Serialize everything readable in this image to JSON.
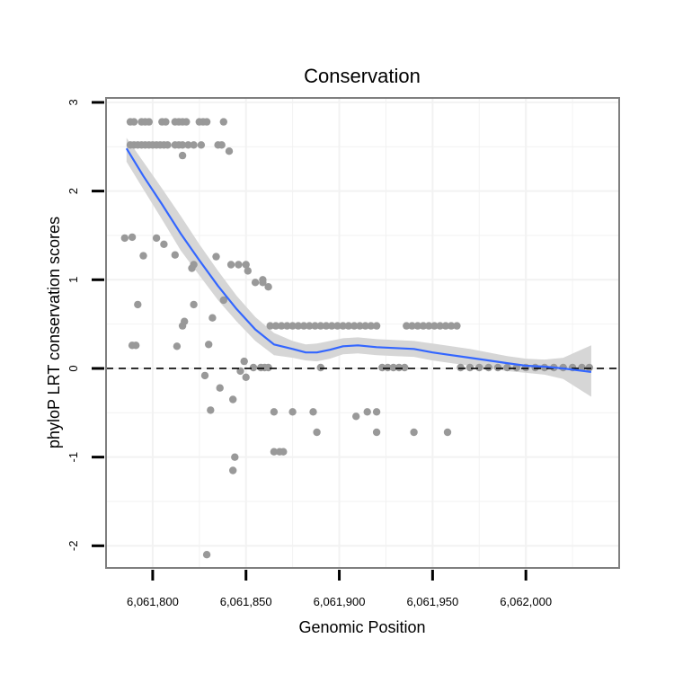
{
  "chart_data": {
    "type": "scatter",
    "title": "Conservation",
    "xlabel": "Genomic Position",
    "ylabel": "phyloP LRT conservation scores",
    "xlim": [
      6061775,
      6062050
    ],
    "ylim": [
      -2.25,
      3.05
    ],
    "x_ticks": [
      {
        "value": 6061800,
        "label": "6,061,800"
      },
      {
        "value": 6061850,
        "label": "6,061,850"
      },
      {
        "value": 6061900,
        "label": "6,061,900"
      },
      {
        "value": 6061950,
        "label": "6,061,950"
      },
      {
        "value": 6062000,
        "label": "6,062,000"
      }
    ],
    "y_ticks": [
      {
        "value": -2,
        "label": "-2"
      },
      {
        "value": -1,
        "label": "-1"
      },
      {
        "value": 0,
        "label": "0"
      },
      {
        "value": 1,
        "label": "1"
      },
      {
        "value": 2,
        "label": "2"
      },
      {
        "value": 3,
        "label": "3"
      }
    ],
    "x_minor": [
      6061825,
      6061875,
      6061925,
      6061975,
      6062025
    ],
    "y_minor": [
      -1.5,
      -0.5,
      0.5,
      1.5,
      2.5
    ],
    "reference_line": {
      "y": 0,
      "style": "dashed"
    },
    "points_color": "#999999",
    "smooth_color": "#3366FF",
    "band_color": "#D6D6D6",
    "panel_border_color": "#7F7F7F",
    "grid_color": "#F2F2F2",
    "points": [
      [
        6061788,
        2.78
      ],
      [
        6061790,
        2.78
      ],
      [
        6061794,
        2.78
      ],
      [
        6061796,
        2.78
      ],
      [
        6061798,
        2.78
      ],
      [
        6061805,
        2.78
      ],
      [
        6061807,
        2.78
      ],
      [
        6061812,
        2.78
      ],
      [
        6061814,
        2.78
      ],
      [
        6061816,
        2.78
      ],
      [
        6061818,
        2.78
      ],
      [
        6061825,
        2.78
      ],
      [
        6061827,
        2.78
      ],
      [
        6061829,
        2.78
      ],
      [
        6061838,
        2.78
      ],
      [
        6061788,
        2.52
      ],
      [
        6061790,
        2.52
      ],
      [
        6061792,
        2.52
      ],
      [
        6061794,
        2.52
      ],
      [
        6061796,
        2.52
      ],
      [
        6061798,
        2.52
      ],
      [
        6061800,
        2.52
      ],
      [
        6061802,
        2.52
      ],
      [
        6061804,
        2.52
      ],
      [
        6061806,
        2.52
      ],
      [
        6061808,
        2.52
      ],
      [
        6061812,
        2.52
      ],
      [
        6061814,
        2.52
      ],
      [
        6061816,
        2.52
      ],
      [
        6061819,
        2.52
      ],
      [
        6061822,
        2.52
      ],
      [
        6061826,
        2.52
      ],
      [
        6061835,
        2.52
      ],
      [
        6061837,
        2.52
      ],
      [
        6061816,
        2.4
      ],
      [
        6061841,
        2.45
      ],
      [
        6061785,
        1.47
      ],
      [
        6061789,
        1.48
      ],
      [
        6061802,
        1.47
      ],
      [
        6061806,
        1.4
      ],
      [
        6061795,
        1.27
      ],
      [
        6061812,
        1.28
      ],
      [
        6061822,
        1.17
      ],
      [
        6061821,
        1.13
      ],
      [
        6061834,
        1.26
      ],
      [
        6061842,
        1.17
      ],
      [
        6061846,
        1.17
      ],
      [
        6061850,
        1.17
      ],
      [
        6061851,
        1.1
      ],
      [
        6061855,
        0.97
      ],
      [
        6061859,
        0.97
      ],
      [
        6061862,
        0.92
      ],
      [
        6061859,
        1.0
      ],
      [
        6061789,
        0.26
      ],
      [
        6061791,
        0.26
      ],
      [
        6061792,
        0.72
      ],
      [
        6061813,
        0.25
      ],
      [
        6061816,
        0.48
      ],
      [
        6061817,
        0.53
      ],
      [
        6061822,
        0.72
      ],
      [
        6061838,
        0.77
      ],
      [
        6061832,
        0.57
      ],
      [
        6061830,
        0.27
      ],
      [
        6061828,
        -0.08
      ],
      [
        6061836,
        -0.22
      ],
      [
        6061843,
        -0.35
      ],
      [
        6061847,
        -0.03
      ],
      [
        6061849,
        0.08
      ],
      [
        6061850,
        -0.1
      ],
      [
        6061854,
        0.01
      ],
      [
        6061858,
        0.01
      ],
      [
        6061860,
        0.01
      ],
      [
        6061862,
        0.01
      ],
      [
        6061831,
        -0.47
      ],
      [
        6061844,
        -1.0
      ],
      [
        6061843,
        -1.15
      ],
      [
        6061829,
        -2.1
      ],
      [
        6061865,
        -0.49
      ],
      [
        6061865,
        -0.94
      ],
      [
        6061868,
        -0.94
      ],
      [
        6061870,
        -0.94
      ],
      [
        6061875,
        -0.49
      ],
      [
        6061886,
        -0.49
      ],
      [
        6061888,
        -0.72
      ],
      [
        6061909,
        -0.54
      ],
      [
        6061915,
        -0.49
      ],
      [
        6061920,
        -0.49
      ],
      [
        6061920,
        -0.72
      ],
      [
        6061940,
        -0.72
      ],
      [
        6061958,
        -0.72
      ],
      [
        6061863,
        0.48
      ],
      [
        6061866,
        0.48
      ],
      [
        6061869,
        0.48
      ],
      [
        6061872,
        0.48
      ],
      [
        6061875,
        0.48
      ],
      [
        6061878,
        0.48
      ],
      [
        6061881,
        0.48
      ],
      [
        6061884,
        0.48
      ],
      [
        6061887,
        0.48
      ],
      [
        6061890,
        0.48
      ],
      [
        6061893,
        0.48
      ],
      [
        6061896,
        0.48
      ],
      [
        6061899,
        0.48
      ],
      [
        6061902,
        0.48
      ],
      [
        6061905,
        0.48
      ],
      [
        6061908,
        0.48
      ],
      [
        6061911,
        0.48
      ],
      [
        6061914,
        0.48
      ],
      [
        6061917,
        0.48
      ],
      [
        6061920,
        0.48
      ],
      [
        6061936,
        0.48
      ],
      [
        6061939,
        0.48
      ],
      [
        6061942,
        0.48
      ],
      [
        6061945,
        0.48
      ],
      [
        6061948,
        0.48
      ],
      [
        6061951,
        0.48
      ],
      [
        6061954,
        0.48
      ],
      [
        6061957,
        0.48
      ],
      [
        6061960,
        0.48
      ],
      [
        6061963,
        0.48
      ],
      [
        6061890,
        0.01
      ],
      [
        6061923,
        0.01
      ],
      [
        6061926,
        0.01
      ],
      [
        6061929,
        0.01
      ],
      [
        6061932,
        0.01
      ],
      [
        6061935,
        0.01
      ],
      [
        6061965,
        0.01
      ],
      [
        6061970,
        0.01
      ],
      [
        6061975,
        0.01
      ],
      [
        6061980,
        0.01
      ],
      [
        6061985,
        0.01
      ],
      [
        6061990,
        0.01
      ],
      [
        6061995,
        0.01
      ],
      [
        6062000,
        0.01
      ],
      [
        6062005,
        0.01
      ],
      [
        6062010,
        0.01
      ],
      [
        6062015,
        0.01
      ],
      [
        6062020,
        0.01
      ],
      [
        6062025,
        0.01
      ],
      [
        6062030,
        0.01
      ],
      [
        6062034,
        0.01
      ]
    ],
    "smooth": [
      [
        6061786,
        2.48
      ],
      [
        6061795,
        2.17
      ],
      [
        6061805,
        1.85
      ],
      [
        6061815,
        1.52
      ],
      [
        6061825,
        1.22
      ],
      [
        6061835,
        0.93
      ],
      [
        6061845,
        0.67
      ],
      [
        6061855,
        0.44
      ],
      [
        6061865,
        0.27
      ],
      [
        6061875,
        0.22
      ],
      [
        6061882,
        0.18
      ],
      [
        6061888,
        0.18
      ],
      [
        6061895,
        0.21
      ],
      [
        6061902,
        0.25
      ],
      [
        6061910,
        0.26
      ],
      [
        6061920,
        0.24
      ],
      [
        6061930,
        0.23
      ],
      [
        6061940,
        0.22
      ],
      [
        6061950,
        0.18
      ],
      [
        6061960,
        0.15
      ],
      [
        6061970,
        0.12
      ],
      [
        6061980,
        0.09
      ],
      [
        6061990,
        0.06
      ],
      [
        6062000,
        0.03
      ],
      [
        6062010,
        0.02
      ],
      [
        6062020,
        0.0
      ],
      [
        6062035,
        -0.04
      ]
    ],
    "band_upper": [
      [
        6061786,
        2.6
      ],
      [
        6061795,
        2.33
      ],
      [
        6061805,
        2.03
      ],
      [
        6061815,
        1.72
      ],
      [
        6061825,
        1.4
      ],
      [
        6061835,
        1.1
      ],
      [
        6061845,
        0.82
      ],
      [
        6061855,
        0.58
      ],
      [
        6061865,
        0.4
      ],
      [
        6061875,
        0.31
      ],
      [
        6061882,
        0.27
      ],
      [
        6061888,
        0.28
      ],
      [
        6061895,
        0.31
      ],
      [
        6061902,
        0.34
      ],
      [
        6061910,
        0.35
      ],
      [
        6061920,
        0.33
      ],
      [
        6061930,
        0.32
      ],
      [
        6061940,
        0.31
      ],
      [
        6061950,
        0.28
      ],
      [
        6061960,
        0.25
      ],
      [
        6061970,
        0.22
      ],
      [
        6061980,
        0.18
      ],
      [
        6061990,
        0.14
      ],
      [
        6062000,
        0.11
      ],
      [
        6062010,
        0.1
      ],
      [
        6062020,
        0.12
      ],
      [
        6062035,
        0.26
      ]
    ],
    "band_lower": [
      [
        6061786,
        2.33
      ],
      [
        6061795,
        2.02
      ],
      [
        6061805,
        1.68
      ],
      [
        6061815,
        1.33
      ],
      [
        6061825,
        1.05
      ],
      [
        6061835,
        0.77
      ],
      [
        6061845,
        0.53
      ],
      [
        6061855,
        0.31
      ],
      [
        6061865,
        0.15
      ],
      [
        6061875,
        0.12
      ],
      [
        6061882,
        0.09
      ],
      [
        6061888,
        0.08
      ],
      [
        6061895,
        0.11
      ],
      [
        6061902,
        0.16
      ],
      [
        6061910,
        0.17
      ],
      [
        6061920,
        0.15
      ],
      [
        6061930,
        0.14
      ],
      [
        6061940,
        0.13
      ],
      [
        6061950,
        0.09
      ],
      [
        6061960,
        0.06
      ],
      [
        6061970,
        0.03
      ],
      [
        6061980,
        0.0
      ],
      [
        6061990,
        -0.03
      ],
      [
        6062000,
        -0.05
      ],
      [
        6062010,
        -0.07
      ],
      [
        6062020,
        -0.12
      ],
      [
        6062035,
        -0.32
      ]
    ]
  }
}
